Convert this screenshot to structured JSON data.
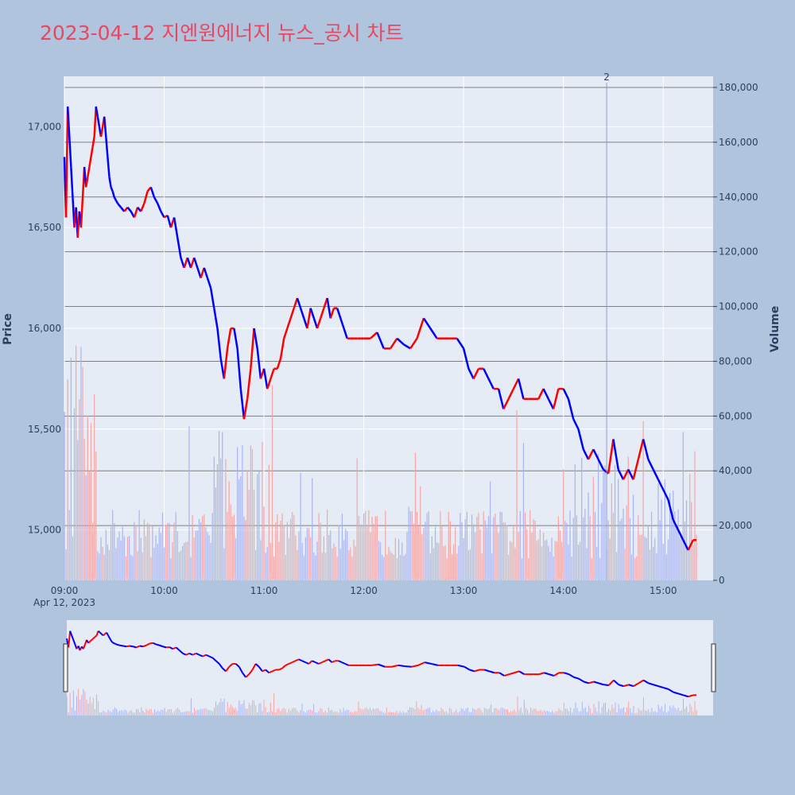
{
  "title": "2023-04-12 지엔원에너지 뉴스_공시 차트",
  "colors": {
    "background": "#b0c4de",
    "plot_bg": "#e5ecf6",
    "up": "#ff0000",
    "down": "#0000ff",
    "vline": "#8e9bd8",
    "title": "#e8475f"
  },
  "chart_data": {
    "type": "line",
    "x_type": "time",
    "date_label": "Apr 12, 2023",
    "xlabel": "",
    "ylabel": "Price",
    "y2label": "Volume",
    "price_range": [
      14750,
      17250
    ],
    "price_ticks": [
      "15,000",
      "15,500",
      "16,000",
      "16,500",
      "17,000"
    ],
    "price_tick_values": [
      15000,
      15500,
      16000,
      16500,
      17000
    ],
    "volume_range": [
      0,
      180000
    ],
    "volume_ticks": [
      "0",
      "20,000",
      "40,000",
      "60,000",
      "80,000",
      "100,000",
      "120,000",
      "140,000",
      "160,000",
      "180,000"
    ],
    "volume_tick_values": [
      0,
      20000,
      40000,
      60000,
      80000,
      100000,
      120000,
      140000,
      160000,
      180000
    ],
    "x_ticks": [
      "09:00",
      "10:00",
      "11:00",
      "12:00",
      "13:00",
      "14:00",
      "15:00"
    ],
    "x_tick_minutes": [
      540,
      600,
      660,
      720,
      780,
      840,
      900
    ],
    "x_range_minutes": [
      540,
      930
    ],
    "annotation": {
      "label": "2",
      "time": "14:26",
      "minute": 866
    },
    "price_points": [
      [
        "09:00",
        16850
      ],
      [
        "09:01",
        16550
      ],
      [
        "09:02",
        17100
      ],
      [
        "09:03",
        16950
      ],
      [
        "09:04",
        16800
      ],
      [
        "09:05",
        16650
      ],
      [
        "09:06",
        16500
      ],
      [
        "09:07",
        16600
      ],
      [
        "09:08",
        16450
      ],
      [
        "09:09",
        16580
      ],
      [
        "09:10",
        16500
      ],
      [
        "09:11",
        16650
      ],
      [
        "09:12",
        16800
      ],
      [
        "09:13",
        16700
      ],
      [
        "09:14",
        16750
      ],
      [
        "09:15",
        16800
      ],
      [
        "09:16",
        16850
      ],
      [
        "09:17",
        16900
      ],
      [
        "09:18",
        16950
      ],
      [
        "09:19",
        17100
      ],
      [
        "09:20",
        17050
      ],
      [
        "09:21",
        17000
      ],
      [
        "09:22",
        16950
      ],
      [
        "09:23",
        17000
      ],
      [
        "09:24",
        17050
      ],
      [
        "09:25",
        16950
      ],
      [
        "09:26",
        16850
      ],
      [
        "09:27",
        16750
      ],
      [
        "09:28",
        16700
      ],
      [
        "09:29",
        16680
      ],
      [
        "09:30",
        16650
      ],
      [
        "09:32",
        16620
      ],
      [
        "09:34",
        16600
      ],
      [
        "09:36",
        16580
      ],
      [
        "09:38",
        16600
      ],
      [
        "09:40",
        16580
      ],
      [
        "09:42",
        16550
      ],
      [
        "09:44",
        16600
      ],
      [
        "09:46",
        16580
      ],
      [
        "09:48",
        16620
      ],
      [
        "09:50",
        16680
      ],
      [
        "09:52",
        16700
      ],
      [
        "09:54",
        16650
      ],
      [
        "09:56",
        16620
      ],
      [
        "09:58",
        16580
      ],
      [
        "10:00",
        16550
      ],
      [
        "10:02",
        16560
      ],
      [
        "10:04",
        16500
      ],
      [
        "10:06",
        16550
      ],
      [
        "10:08",
        16450
      ],
      [
        "10:10",
        16350
      ],
      [
        "10:12",
        16300
      ],
      [
        "10:14",
        16350
      ],
      [
        "10:16",
        16300
      ],
      [
        "10:18",
        16350
      ],
      [
        "10:20",
        16300
      ],
      [
        "10:22",
        16250
      ],
      [
        "10:24",
        16300
      ],
      [
        "10:26",
        16250
      ],
      [
        "10:28",
        16200
      ],
      [
        "10:30",
        16100
      ],
      [
        "10:32",
        16000
      ],
      [
        "10:34",
        15850
      ],
      [
        "10:36",
        15750
      ],
      [
        "10:38",
        15900
      ],
      [
        "10:40",
        16000
      ],
      [
        "10:42",
        16000
      ],
      [
        "10:44",
        15900
      ],
      [
        "10:46",
        15700
      ],
      [
        "10:48",
        15550
      ],
      [
        "10:50",
        15650
      ],
      [
        "10:52",
        15800
      ],
      [
        "10:54",
        16000
      ],
      [
        "10:56",
        15900
      ],
      [
        "10:58",
        15750
      ],
      [
        "11:00",
        15800
      ],
      [
        "11:02",
        15700
      ],
      [
        "11:04",
        15750
      ],
      [
        "11:06",
        15800
      ],
      [
        "11:08",
        15800
      ],
      [
        "11:10",
        15850
      ],
      [
        "11:12",
        15950
      ],
      [
        "11:14",
        16000
      ],
      [
        "11:16",
        16050
      ],
      [
        "11:18",
        16100
      ],
      [
        "11:20",
        16150
      ],
      [
        "11:22",
        16100
      ],
      [
        "11:24",
        16050
      ],
      [
        "11:26",
        16000
      ],
      [
        "11:28",
        16100
      ],
      [
        "11:30",
        16050
      ],
      [
        "11:32",
        16000
      ],
      [
        "11:34",
        16050
      ],
      [
        "11:36",
        16100
      ],
      [
        "11:38",
        16150
      ],
      [
        "11:40",
        16050
      ],
      [
        "11:42",
        16100
      ],
      [
        "11:44",
        16100
      ],
      [
        "11:46",
        16050
      ],
      [
        "11:48",
        16000
      ],
      [
        "11:50",
        15950
      ],
      [
        "11:52",
        15950
      ],
      [
        "11:54",
        15950
      ],
      [
        "11:56",
        15950
      ],
      [
        "11:58",
        15950
      ],
      [
        "12:00",
        15950
      ],
      [
        "12:04",
        15950
      ],
      [
        "12:08",
        15980
      ],
      [
        "12:12",
        15900
      ],
      [
        "12:16",
        15900
      ],
      [
        "12:20",
        15950
      ],
      [
        "12:24",
        15920
      ],
      [
        "12:28",
        15900
      ],
      [
        "12:32",
        15950
      ],
      [
        "12:36",
        16050
      ],
      [
        "12:40",
        16000
      ],
      [
        "12:44",
        15950
      ],
      [
        "12:48",
        15950
      ],
      [
        "12:52",
        15950
      ],
      [
        "12:56",
        15950
      ],
      [
        "13:00",
        15900
      ],
      [
        "13:03",
        15800
      ],
      [
        "13:06",
        15750
      ],
      [
        "13:09",
        15800
      ],
      [
        "13:12",
        15800
      ],
      [
        "13:15",
        15750
      ],
      [
        "13:18",
        15700
      ],
      [
        "13:21",
        15700
      ],
      [
        "13:24",
        15600
      ],
      [
        "13:27",
        15650
      ],
      [
        "13:30",
        15700
      ],
      [
        "13:33",
        15750
      ],
      [
        "13:36",
        15650
      ],
      [
        "13:39",
        15650
      ],
      [
        "13:42",
        15650
      ],
      [
        "13:45",
        15650
      ],
      [
        "13:48",
        15700
      ],
      [
        "13:51",
        15650
      ],
      [
        "13:54",
        15600
      ],
      [
        "13:57",
        15700
      ],
      [
        "14:00",
        15700
      ],
      [
        "14:03",
        15650
      ],
      [
        "14:06",
        15550
      ],
      [
        "14:09",
        15500
      ],
      [
        "14:12",
        15400
      ],
      [
        "14:15",
        15350
      ],
      [
        "14:18",
        15400
      ],
      [
        "14:21",
        15350
      ],
      [
        "14:24",
        15300
      ],
      [
        "14:27",
        15280
      ],
      [
        "14:30",
        15450
      ],
      [
        "14:33",
        15300
      ],
      [
        "14:36",
        15250
      ],
      [
        "14:39",
        15300
      ],
      [
        "14:42",
        15250
      ],
      [
        "14:45",
        15350
      ],
      [
        "14:48",
        15450
      ],
      [
        "14:51",
        15350
      ],
      [
        "14:54",
        15300
      ],
      [
        "14:57",
        15250
      ],
      [
        "15:00",
        15200
      ],
      [
        "15:03",
        15150
      ],
      [
        "15:06",
        15050
      ],
      [
        "15:09",
        15000
      ],
      [
        "15:12",
        14950
      ],
      [
        "15:15",
        14900
      ],
      [
        "15:18",
        14950
      ],
      [
        "15:20",
        14950
      ]
    ]
  }
}
